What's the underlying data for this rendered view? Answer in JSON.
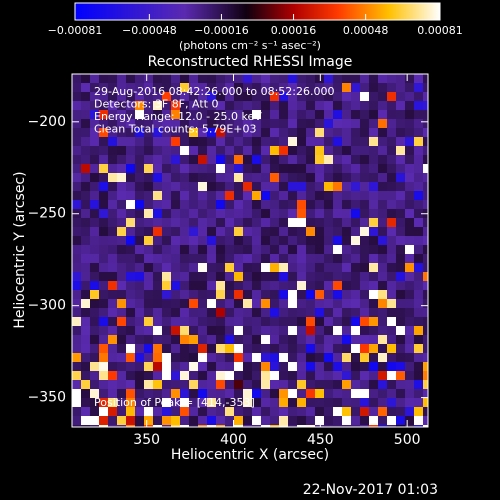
{
  "chart_data": {
    "type": "image",
    "title": "Reconstructed RHESSI Image",
    "xlabel": "Heliocentric X (arcsec)",
    "ylabel": "Heliocentric Y (arcsec)",
    "xlim": [
      307,
      512
    ],
    "xticks": [
      350,
      400,
      450,
      500
    ],
    "ylim": [
      -366,
      -174
    ],
    "yticks": [
      {
        "value": -200,
        "label": "−200"
      },
      {
        "value": -250,
        "label": "−250"
      },
      {
        "value": -300,
        "label": "−300"
      },
      {
        "value": -350,
        "label": "−350"
      }
    ],
    "colorbar": {
      "lim": [
        -0.00081,
        0.00081
      ],
      "label": "(photons cm⁻² s⁻¹ asec⁻²)",
      "ticks": [
        {
          "value": -0.00081,
          "label": "−0.00081"
        },
        {
          "value": -0.00048,
          "label": "−0.00048"
        },
        {
          "value": -0.00016,
          "label": "−0.00016"
        },
        0.00016,
        0.00048,
        0.00081
      ]
    },
    "annotations": [
      "29-Aug-2016 08:42:26.000 to 08:52:26.000",
      "Detectors: 3F 8F, Att 0",
      "Energy Range: 12.0 - 25.0 keV",
      "Clean     Total counts: 5.79E+03",
      "Position of Peak = [414,-353]"
    ],
    "footer": "22-Nov-2017 01:03"
  }
}
